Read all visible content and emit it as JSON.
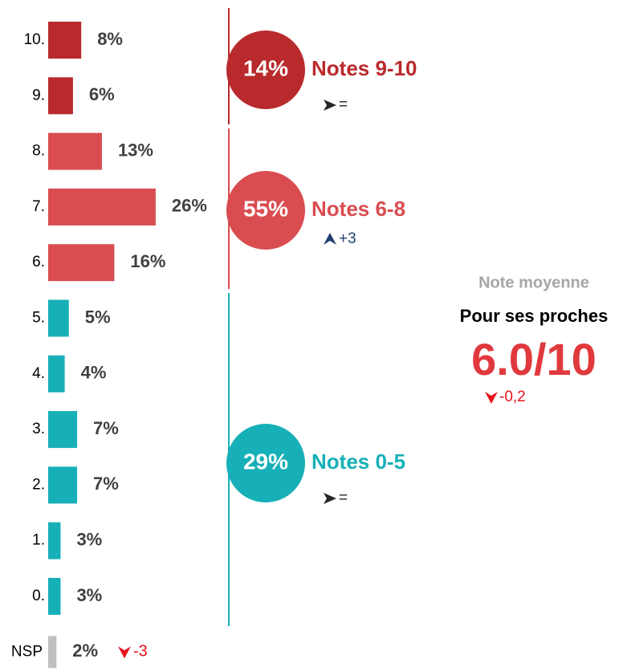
{
  "chart_data": {
    "type": "bar",
    "orientation": "horizontal",
    "categories": [
      "10.",
      "9.",
      "8.",
      "7.",
      "6.",
      "5.",
      "4.",
      "3.",
      "2.",
      "1.",
      "0.",
      "NSP"
    ],
    "values": [
      8,
      6,
      13,
      26,
      16,
      5,
      4,
      7,
      7,
      3,
      3,
      2
    ],
    "value_labels": [
      "8%",
      "6%",
      "13%",
      "26%",
      "16%",
      "5%",
      "4%",
      "7%",
      "7%",
      "3%",
      "3%",
      "2%"
    ],
    "colors": [
      "#b92a2c",
      "#b92a2c",
      "#d94c50",
      "#d94c50",
      "#d94c50",
      "#17b0b8",
      "#17b0b8",
      "#17b0b8",
      "#17b0b8",
      "#17b0b8",
      "#17b0b8",
      "#bfbfbf"
    ],
    "nsp_change": {
      "label": "-3",
      "direction": "down",
      "color": "#e8121b"
    },
    "groups": [
      {
        "name": "Notes 9-10",
        "value": 14,
        "label": "14%",
        "color": "#b92a2c",
        "trend": "=",
        "trend_direction": "right",
        "trend_color": "#262626"
      },
      {
        "name": "Notes 6-8",
        "value": 55,
        "label": "55%",
        "color": "#d94c50",
        "trend": "+3",
        "trend_direction": "up",
        "trend_color": "#1f3f6e"
      },
      {
        "name": "Notes 0-5",
        "value": 29,
        "label": "29%",
        "color": "#17b0b8",
        "trend": "=",
        "trend_direction": "right",
        "trend_color": "#262626"
      }
    ],
    "mean": {
      "title": "Note moyenne",
      "subtitle": "Pour ses proches",
      "label": "6.0/10",
      "color": "#e0393d",
      "change": "-0,2",
      "change_direction": "down",
      "change_color": "#e8121b"
    }
  }
}
